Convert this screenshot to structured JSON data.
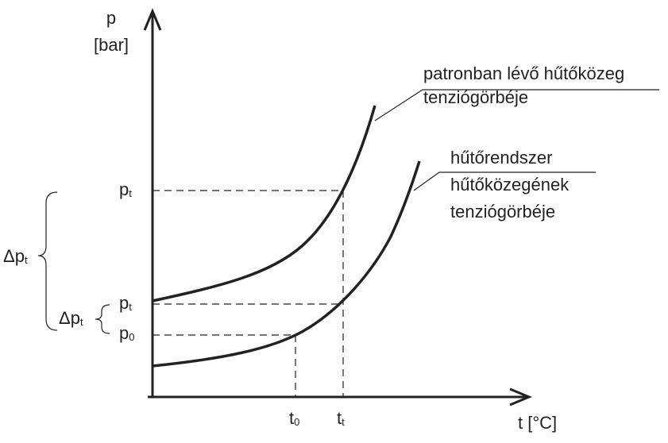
{
  "axes": {
    "y_label": "p",
    "y_unit": "[bar]",
    "x_label": "t [°C]"
  },
  "curves": [
    {
      "label_lines": [
        "patronban lévő hűtőközeg",
        "tenziógörbéje"
      ]
    },
    {
      "label_lines": [
        "hűtőrendszer",
        "hűtőközegének",
        "tenziógörbéje"
      ]
    }
  ],
  "y_marks": [
    {
      "main": "p",
      "sub": "t"
    },
    {
      "main": "p",
      "sub": "t"
    },
    {
      "main": "p",
      "sub": "0"
    }
  ],
  "x_marks": [
    {
      "main": "t",
      "sub": "0"
    },
    {
      "main": "t",
      "sub": "t"
    }
  ],
  "braces": [
    {
      "main": "Δp",
      "sub": "t"
    },
    {
      "main": "Δp",
      "sub": "t"
    }
  ]
}
